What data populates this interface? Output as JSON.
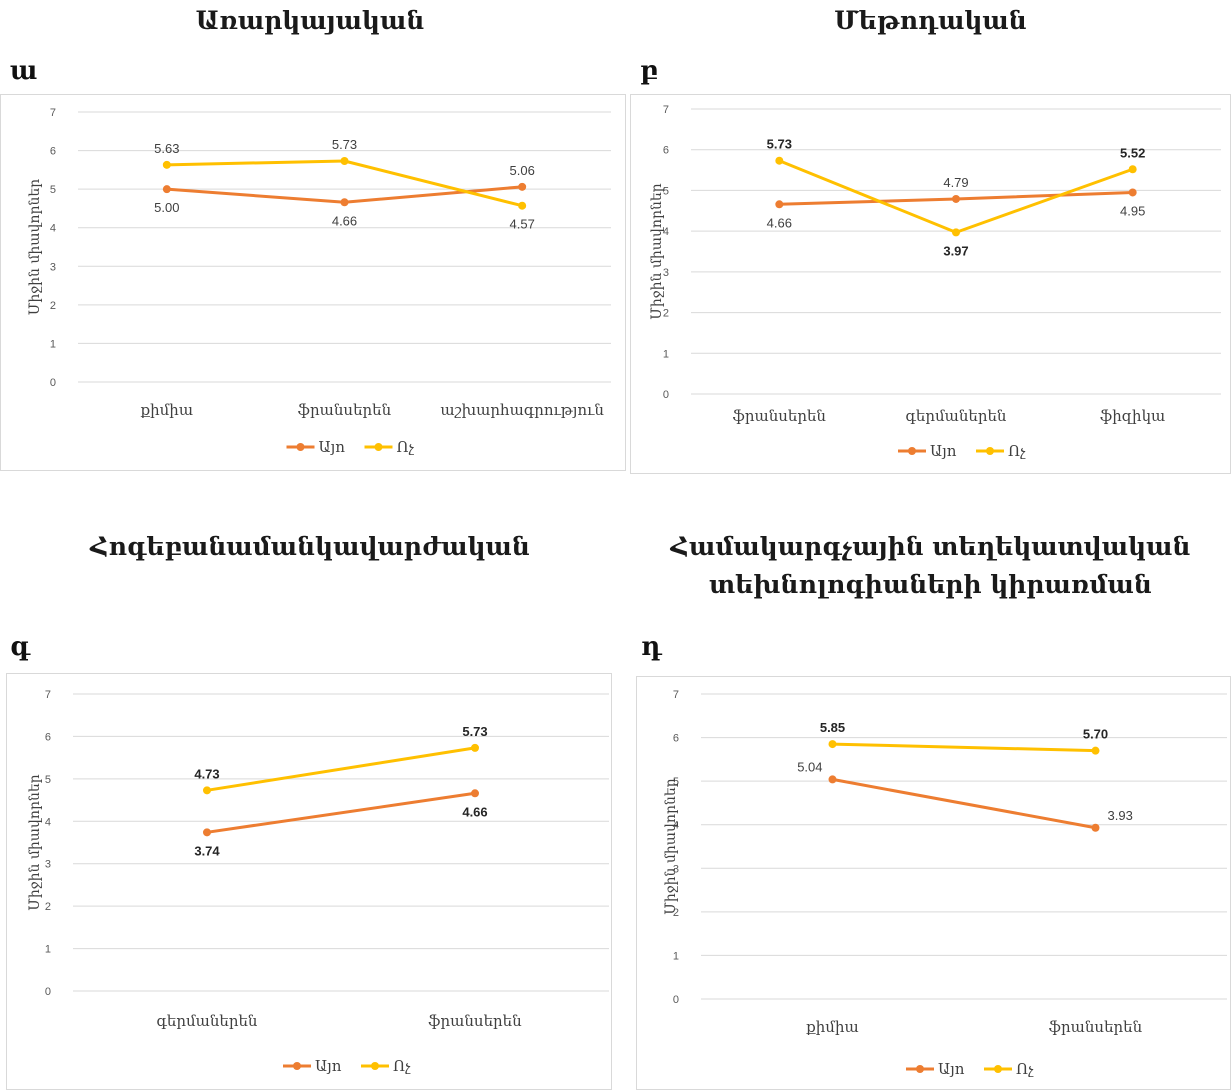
{
  "panels": [
    {
      "heading_lines": [
        "Առարկայական"
      ],
      "letter": "ա",
      "chart_data": {
        "type": "line",
        "categories": [
          "քիմիա",
          "ֆրանսերեն",
          "աշխարհագրություն"
        ],
        "ylabel": "Միջին միավորներ",
        "ylim": [
          0,
          7
        ],
        "yticks": [
          "0",
          "1",
          "2",
          "3",
          "4",
          "5",
          "6",
          "7"
        ],
        "grid": true,
        "legend_position": "bottom",
        "series": [
          {
            "name": "Այո",
            "color": "#ED7D31",
            "values": [
              5.0,
              4.66,
              5.06
            ],
            "labels": [
              "5.00",
              "4.66",
              "5.06"
            ]
          },
          {
            "name": "Ոչ",
            "color": "#FFC000",
            "values": [
              5.63,
              5.73,
              4.57
            ],
            "labels": [
              "5.63",
              "5.73",
              "4.57"
            ]
          }
        ]
      }
    },
    {
      "heading_lines": [
        "Մեթոդական"
      ],
      "letter": "բ",
      "chart_data": {
        "type": "line",
        "categories": [
          "ֆրանսերեն",
          "գերմաներեն",
          "ֆիզիկա"
        ],
        "ylabel": "Միջին միավորներ",
        "ylim": [
          0,
          7
        ],
        "yticks": [
          "0",
          "1",
          "2",
          "3",
          "4",
          "5",
          "6",
          "7"
        ],
        "grid": true,
        "legend_position": "bottom",
        "series": [
          {
            "name": "Այո",
            "color": "#ED7D31",
            "values": [
              4.66,
              4.79,
              4.95
            ],
            "labels": [
              "4.66",
              "4.79",
              "4.95"
            ]
          },
          {
            "name": "Ոչ",
            "color": "#FFC000",
            "values": [
              5.73,
              3.97,
              5.52
            ],
            "labels": [
              "5.73",
              "3.97",
              "5.52"
            ]
          }
        ]
      }
    },
    {
      "heading_lines": [
        "Հոգեբանամանկավարժական"
      ],
      "letter": "գ",
      "chart_data": {
        "type": "line",
        "categories": [
          "գերմաներեն",
          "ֆրանսերեն"
        ],
        "ylabel": "Միջին միավորներ",
        "ylim": [
          0,
          7
        ],
        "yticks": [
          "0",
          "1",
          "2",
          "3",
          "4",
          "5",
          "6",
          "7"
        ],
        "grid": true,
        "legend_position": "bottom",
        "series": [
          {
            "name": "Այո",
            "color": "#ED7D31",
            "values": [
              3.74,
              4.66
            ],
            "labels": [
              "3.74",
              "4.66"
            ]
          },
          {
            "name": "Ոչ",
            "color": "#FFC000",
            "values": [
              4.73,
              5.73
            ],
            "labels": [
              "4.73",
              "5.73"
            ]
          }
        ]
      }
    },
    {
      "heading_lines": [
        "Համակարգչային տեղեկատվական",
        "տեխնոլոգիաների կիրառման"
      ],
      "letter": "դ",
      "chart_data": {
        "type": "line",
        "categories": [
          "քիմիա",
          "ֆրանսերեն"
        ],
        "ylabel": "Միջին միավորներ",
        "ylim": [
          0,
          7
        ],
        "yticks": [
          "0",
          "1",
          "2",
          "3",
          "4",
          "5",
          "6",
          "7"
        ],
        "grid": true,
        "legend_position": "bottom",
        "series": [
          {
            "name": "Այո",
            "color": "#ED7D31",
            "values": [
              5.04,
              3.93
            ],
            "labels": [
              "5.04",
              "3.93"
            ]
          },
          {
            "name": "Ոչ",
            "color": "#FFC000",
            "values": [
              5.85,
              5.7
            ],
            "labels": [
              "5.85",
              "5.70"
            ]
          }
        ]
      }
    }
  ]
}
